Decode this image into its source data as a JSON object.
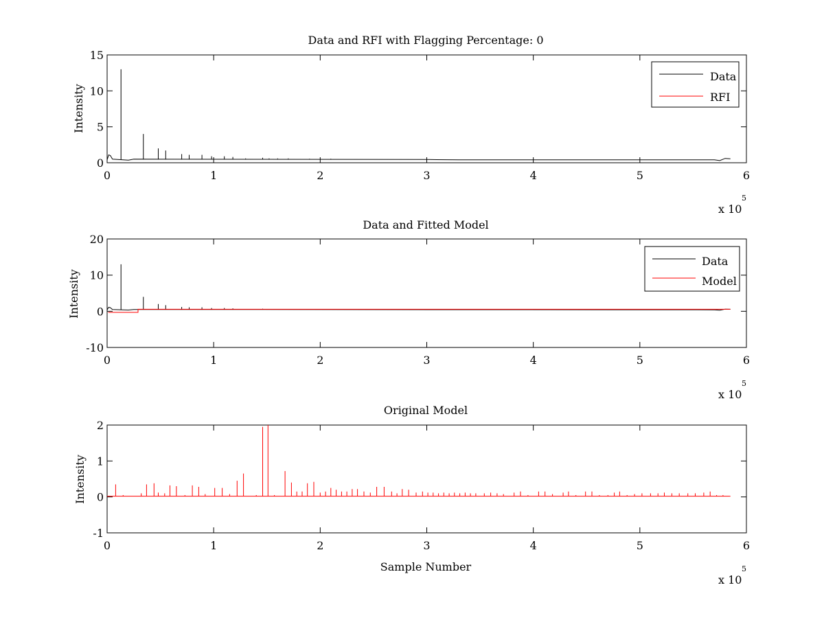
{
  "chart_data": [
    {
      "type": "line",
      "title": "Data and RFI with Flagging Percentage: 0",
      "xlabel": "",
      "ylabel": "Intensity",
      "xlim": [
        0,
        600000
      ],
      "ylim": [
        0,
        15
      ],
      "x_ticks": [
        "0",
        "1",
        "2",
        "3",
        "4",
        "5",
        "6"
      ],
      "y_ticks": [
        "0",
        "5",
        "10",
        "15"
      ],
      "x_exponent_label": "x 10",
      "x_exponent_power": "5",
      "grid": false,
      "legend_position": "top-right",
      "series": [
        {
          "name": "Data",
          "color": "#000000",
          "baseline": 0.45,
          "points": [
            [
              0,
              0.4
            ],
            [
              1500,
              1.1
            ],
            [
              3000,
              1.0
            ],
            [
              5000,
              0.5
            ],
            [
              20000,
              0.35
            ],
            [
              25000,
              0.5
            ],
            [
              300000,
              0.45
            ],
            [
              330000,
              0.4
            ],
            [
              570000,
              0.4
            ],
            [
              575000,
              0.3
            ],
            [
              580000,
              0.6
            ],
            [
              585000,
              0.55
            ]
          ],
          "spikes": [
            [
              13000,
              13
            ],
            [
              34000,
              4
            ],
            [
              48000,
              2
            ],
            [
              55000,
              1.7
            ],
            [
              70000,
              1.2
            ],
            [
              77000,
              1.1
            ],
            [
              89000,
              1.1
            ],
            [
              98000,
              0.9
            ],
            [
              110000,
              0.9
            ],
            [
              118000,
              0.8
            ],
            [
              130000,
              0.6
            ],
            [
              146000,
              0.7
            ],
            [
              152000,
              0.6
            ],
            [
              160000,
              0.6
            ],
            [
              170000,
              0.6
            ],
            [
              190000,
              0.55
            ],
            [
              210000,
              0.55
            ]
          ]
        },
        {
          "name": "RFI",
          "color": "#ff0000",
          "points": []
        }
      ]
    },
    {
      "type": "line",
      "title": "Data and Fitted Model",
      "xlabel": "",
      "ylabel": "Intensity",
      "xlim": [
        0,
        600000
      ],
      "ylim": [
        -10,
        20
      ],
      "x_ticks": [
        "0",
        "1",
        "2",
        "3",
        "4",
        "5",
        "6"
      ],
      "y_ticks": [
        "-10",
        "0",
        "10",
        "20"
      ],
      "x_exponent_label": "x 10",
      "x_exponent_power": "5",
      "grid": false,
      "legend_position": "top-right",
      "series": [
        {
          "name": "Data",
          "color": "#000000",
          "baseline": 0.45,
          "points": [
            [
              0,
              0.4
            ],
            [
              1500,
              1.1
            ],
            [
              3000,
              1.0
            ],
            [
              5000,
              0.5
            ],
            [
              20000,
              0.35
            ],
            [
              25000,
              0.5
            ],
            [
              570000,
              0.4
            ],
            [
              575000,
              0.3
            ],
            [
              580000,
              0.6
            ],
            [
              585000,
              0.55
            ]
          ],
          "spikes": [
            [
              13000,
              13
            ],
            [
              34000,
              4
            ],
            [
              48000,
              2
            ],
            [
              55000,
              1.7
            ],
            [
              70000,
              1.2
            ],
            [
              77000,
              1.1
            ],
            [
              89000,
              1.1
            ],
            [
              98000,
              0.9
            ],
            [
              110000,
              0.9
            ],
            [
              118000,
              0.8
            ],
            [
              146000,
              0.7
            ],
            [
              152000,
              0.6
            ],
            [
              160000,
              0.6
            ],
            [
              170000,
              0.6
            ]
          ]
        },
        {
          "name": "Model",
          "color": "#ff0000",
          "points": [
            [
              1000,
              -0.3
            ],
            [
              29000,
              -0.3
            ],
            [
              29000,
              0.55
            ],
            [
              585000,
              0.55
            ]
          ]
        }
      ]
    },
    {
      "type": "line",
      "title": "Original Model",
      "xlabel": "Sample Number",
      "ylabel": "Intensity",
      "xlim": [
        0,
        600000
      ],
      "ylim": [
        -1,
        2
      ],
      "x_ticks": [
        "0",
        "1",
        "2",
        "3",
        "4",
        "5",
        "6"
      ],
      "y_ticks": [
        "-1",
        "0",
        "1",
        "2"
      ],
      "x_exponent_label": "x 10",
      "x_exponent_power": "5",
      "grid": false,
      "series": [
        {
          "name": "",
          "color": "#ff0000",
          "baseline": 0.02,
          "points": [
            [
              0,
              0.02
            ],
            [
              585000,
              0.02
            ]
          ],
          "spikes": [
            [
              8000,
              0.35
            ],
            [
              15000,
              0.05
            ],
            [
              32000,
              0.1
            ],
            [
              37000,
              0.35
            ],
            [
              44000,
              0.38
            ],
            [
              48000,
              0.12
            ],
            [
              54000,
              0.1
            ],
            [
              59000,
              0.32
            ],
            [
              65000,
              0.3
            ],
            [
              73000,
              0.05
            ],
            [
              80000,
              0.32
            ],
            [
              86000,
              0.28
            ],
            [
              92000,
              0.08
            ],
            [
              101000,
              0.25
            ],
            [
              108000,
              0.25
            ],
            [
              115000,
              0.08
            ],
            [
              122000,
              0.45
            ],
            [
              128000,
              0.65
            ],
            [
              140000,
              0.05
            ],
            [
              146000,
              1.95
            ],
            [
              151000,
              2.0
            ],
            [
              157000,
              0.05
            ],
            [
              167000,
              0.72
            ],
            [
              173000,
              0.4
            ],
            [
              178000,
              0.15
            ],
            [
              183000,
              0.15
            ],
            [
              188000,
              0.38
            ],
            [
              194000,
              0.42
            ],
            [
              200000,
              0.12
            ],
            [
              205000,
              0.15
            ],
            [
              210000,
              0.25
            ],
            [
              215000,
              0.2
            ],
            [
              220000,
              0.15
            ],
            [
              225000,
              0.15
            ],
            [
              230000,
              0.22
            ],
            [
              235000,
              0.22
            ],
            [
              241000,
              0.15
            ],
            [
              247000,
              0.12
            ],
            [
              253000,
              0.28
            ],
            [
              260000,
              0.28
            ],
            [
              267000,
              0.15
            ],
            [
              272000,
              0.1
            ],
            [
              277000,
              0.22
            ],
            [
              283000,
              0.2
            ],
            [
              290000,
              0.12
            ],
            [
              296000,
              0.15
            ],
            [
              301000,
              0.12
            ],
            [
              306000,
              0.12
            ],
            [
              311000,
              0.1
            ],
            [
              316000,
              0.12
            ],
            [
              321000,
              0.1
            ],
            [
              326000,
              0.12
            ],
            [
              331000,
              0.1
            ],
            [
              336000,
              0.12
            ],
            [
              341000,
              0.1
            ],
            [
              346000,
              0.1
            ],
            [
              354000,
              0.1
            ],
            [
              360000,
              0.12
            ],
            [
              366000,
              0.1
            ],
            [
              372000,
              0.08
            ],
            [
              382000,
              0.12
            ],
            [
              388000,
              0.15
            ],
            [
              395000,
              0.05
            ],
            [
              405000,
              0.15
            ],
            [
              411000,
              0.15
            ],
            [
              418000,
              0.08
            ],
            [
              428000,
              0.12
            ],
            [
              433000,
              0.15
            ],
            [
              440000,
              0.05
            ],
            [
              449000,
              0.15
            ],
            [
              455000,
              0.15
            ],
            [
              462000,
              0.05
            ],
            [
              470000,
              0.05
            ],
            [
              476000,
              0.12
            ],
            [
              481000,
              0.15
            ],
            [
              488000,
              0.05
            ],
            [
              495000,
              0.08
            ],
            [
              502000,
              0.1
            ],
            [
              510000,
              0.1
            ],
            [
              517000,
              0.1
            ],
            [
              523000,
              0.12
            ],
            [
              530000,
              0.1
            ],
            [
              537000,
              0.1
            ],
            [
              545000,
              0.1
            ],
            [
              552000,
              0.1
            ],
            [
              560000,
              0.12
            ],
            [
              566000,
              0.15
            ],
            [
              572000,
              0.05
            ],
            [
              578000,
              0.05
            ]
          ]
        }
      ]
    }
  ]
}
